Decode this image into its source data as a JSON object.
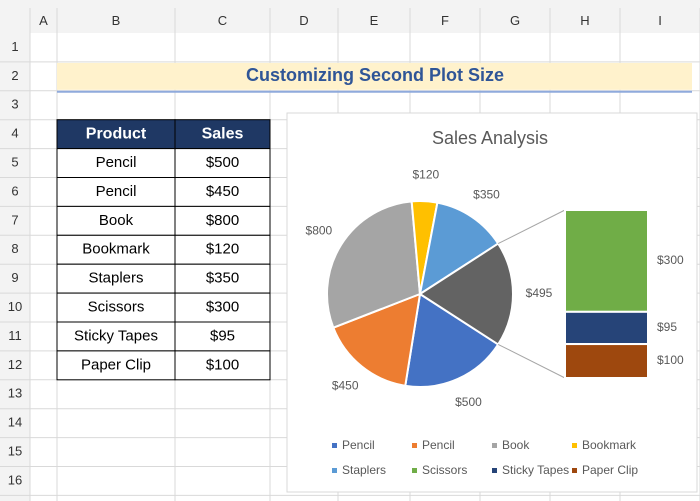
{
  "sheet": {
    "columns": [
      "A",
      "B",
      "C",
      "D",
      "E",
      "F",
      "G",
      "H",
      "I"
    ],
    "rows": [
      1,
      2,
      3,
      4,
      5,
      6,
      7,
      8,
      9,
      10,
      11,
      12,
      13,
      14,
      15,
      16
    ],
    "title": "Customizing Second Plot Size",
    "table": {
      "header": [
        "Product",
        "Sales"
      ],
      "rows": [
        [
          "Pencil",
          "$500"
        ],
        [
          "Pencil",
          "$450"
        ],
        [
          "Book",
          "$800"
        ],
        [
          "Bookmark",
          "$120"
        ],
        [
          "Staplers",
          "$350"
        ],
        [
          "Scissors",
          "$300"
        ],
        [
          "Sticky Tapes",
          "$95"
        ],
        [
          "Paper Clip",
          "$100"
        ]
      ]
    }
  },
  "chart_data": {
    "type": "pie",
    "title": "Sales Analysis",
    "categories": [
      "Pencil",
      "Pencil",
      "Book",
      "Bookmark",
      "Staplers",
      "Scissors",
      "Sticky Tapes",
      "Paper Clip"
    ],
    "values": [
      500,
      450,
      800,
      120,
      350,
      300,
      95,
      100
    ],
    "value_labels": [
      "$500",
      "$450",
      "$800",
      "$120",
      "$350",
      "$300",
      "$95",
      "$100"
    ],
    "colors": [
      "#4472c4",
      "#ed7d31",
      "#a5a5a5",
      "#ffc000",
      "#5b9bd5",
      "#70ad47",
      "#264478",
      "#9e480e"
    ],
    "secondary_count": 3,
    "other_value": 495,
    "other_label": "$495",
    "other_color": "#636363",
    "legend": "bottom"
  }
}
